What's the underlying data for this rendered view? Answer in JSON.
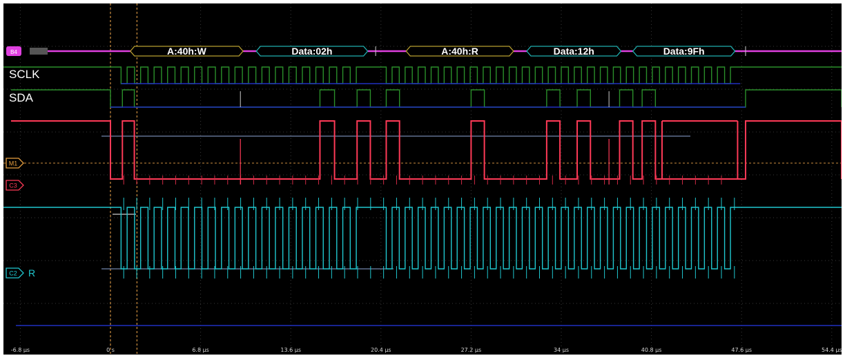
{
  "scope": {
    "bus_badge": "B4",
    "lane_labels": {
      "scl": "SCLK",
      "sda": "SDA"
    },
    "channels": [
      {
        "id": "M1",
        "color": "#e8a040"
      },
      {
        "id": "C3",
        "color": "#ff3a57"
      },
      {
        "id": "C2",
        "color": "#20c8d0",
        "suffix": "R"
      }
    ],
    "bus_packets": [
      {
        "label": "A:40h:W",
        "border": "#b8a030",
        "start_us": 1.5,
        "end_us": 10.0
      },
      {
        "label": "Data:02h",
        "border": "#20b0b0",
        "start_us": 11.0,
        "end_us": 19.4
      },
      {
        "label": "A:40h:R",
        "border": "#b8a030",
        "start_us": 22.3,
        "end_us": 30.4
      },
      {
        "label": "Data:12h",
        "border": "#20b0b0",
        "start_us": 31.4,
        "end_us": 38.5
      },
      {
        "label": "Data:9Fh",
        "border": "#20b0b0",
        "start_us": 39.4,
        "end_us": 47.1
      }
    ],
    "time_axis": {
      "labels": [
        "-6.8 µs",
        "0 s",
        "6.8 µs",
        "13.6 µs",
        "20.4 µs",
        "27.2 µs",
        "34 µs",
        "40.8 µs",
        "47.6 µs",
        "54.4 µs"
      ],
      "values_us": [
        -6.8,
        0,
        6.8,
        13.6,
        20.4,
        27.2,
        34,
        40.8,
        47.6,
        54.4
      ]
    },
    "colors": {
      "bus": "#e040e0",
      "scl": "#2a8f2a",
      "sda": "#2a8f2a",
      "low_line": "#2030c0",
      "c3": "#ff3a57",
      "c2": "#20c8d0",
      "cursor": "#d09040",
      "grid": "#3a3a3a"
    }
  }
}
